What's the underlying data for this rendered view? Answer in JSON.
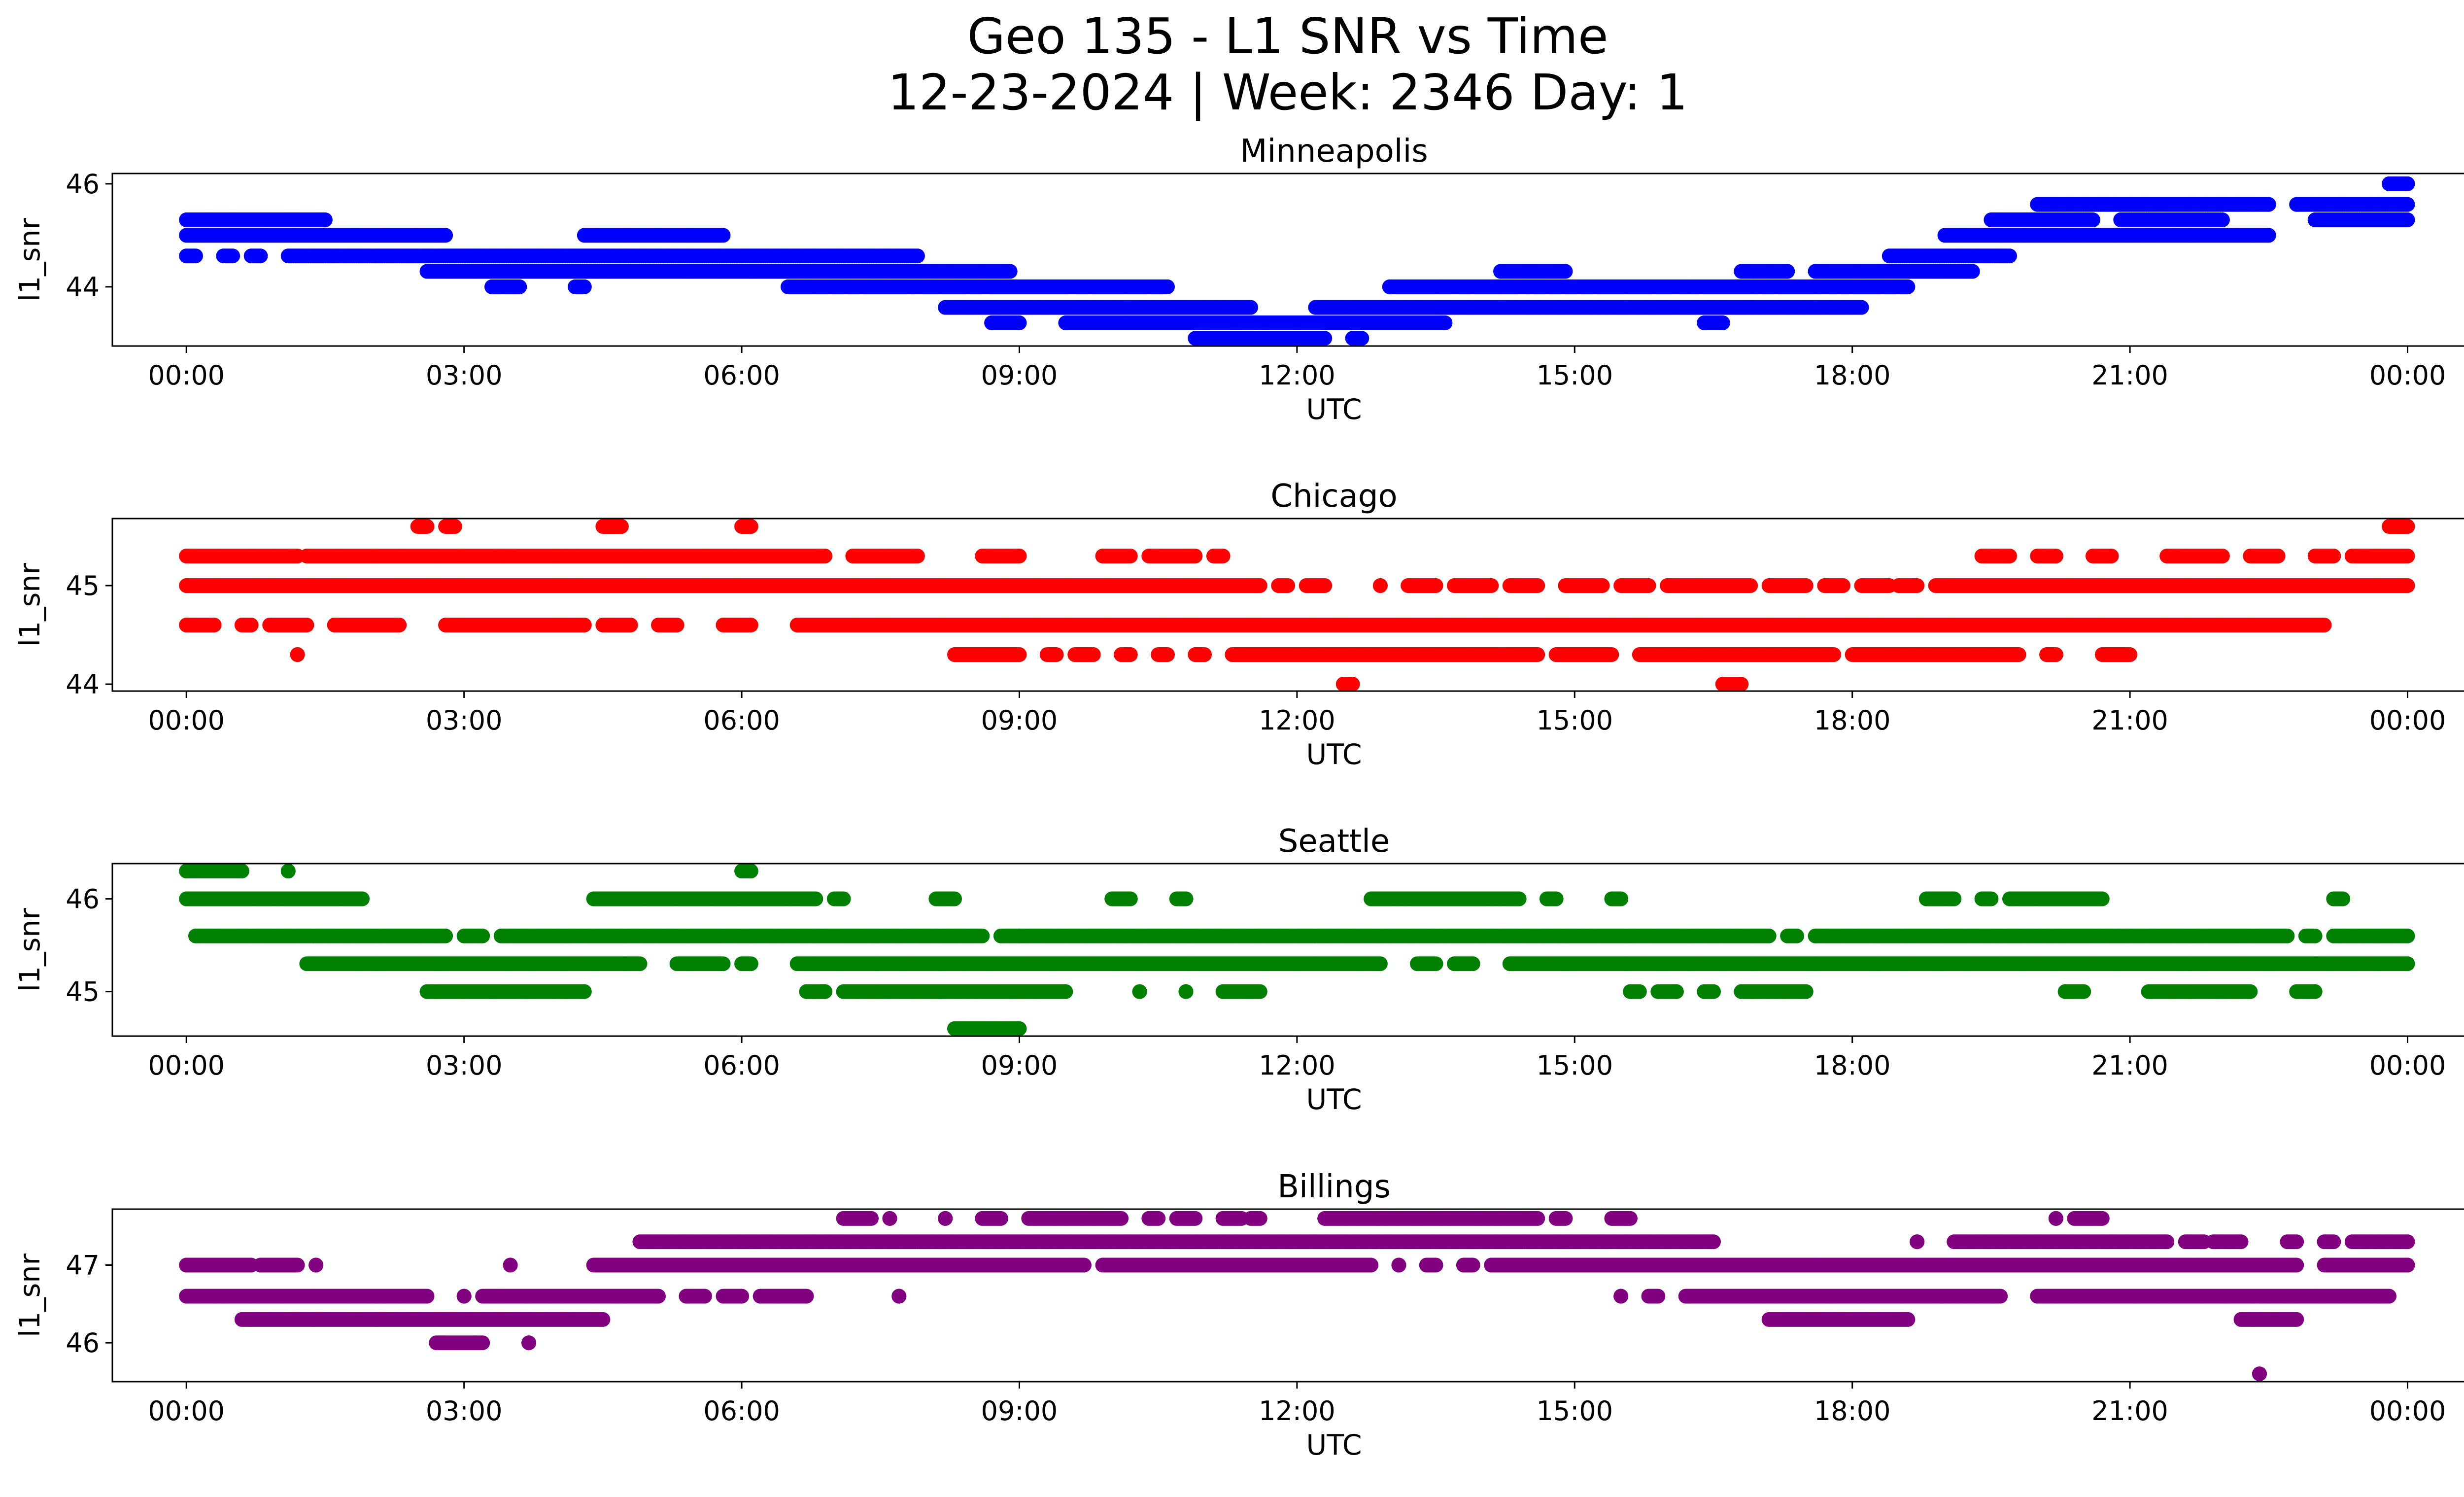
{
  "chart_data": {
    "type": "scatter",
    "title_line1": "Geo 135 - L1 SNR vs Time",
    "title_line2": "12-23-2024 | Week: 2346 Day: 1",
    "xlabel": "UTC",
    "ylabel": "l1_snr",
    "x_range_hours": [
      -0.8,
      25.6
    ],
    "x_ticks": [
      {
        "hour": 0,
        "label": "00:00"
      },
      {
        "hour": 3,
        "label": "03:00"
      },
      {
        "hour": 6,
        "label": "06:00"
      },
      {
        "hour": 9,
        "label": "09:00"
      },
      {
        "hour": 12,
        "label": "12:00"
      },
      {
        "hour": 15,
        "label": "15:00"
      },
      {
        "hour": 18,
        "label": "18:00"
      },
      {
        "hour": 21,
        "label": "21:00"
      },
      {
        "hour": 24,
        "label": "00:00"
      }
    ],
    "panels": [
      {
        "title": "Minneapolis",
        "color": "#0000ff",
        "ylim": [
          42.85,
          46.2
        ],
        "yticks": [
          {
            "value": 44,
            "label": "44"
          },
          {
            "value": 46,
            "label": "46"
          }
        ],
        "series": [
          {
            "snr": 46.0,
            "segments": [
              [
                23.8,
                24.0
              ]
            ]
          },
          {
            "snr": 45.6,
            "segments": [
              [
                20.0,
                22.5
              ],
              [
                22.8,
                24.0
              ]
            ]
          },
          {
            "snr": 45.3,
            "segments": [
              [
                0.0,
                1.5
              ],
              [
                19.5,
                20.6
              ],
              [
                20.9,
                22.0
              ],
              [
                23.0,
                24.0
              ]
            ]
          },
          {
            "snr": 45.0,
            "segments": [
              [
                0.0,
                2.8
              ],
              [
                4.3,
                5.8
              ],
              [
                19.0,
                22.5
              ]
            ]
          },
          {
            "snr": 44.6,
            "segments": [
              [
                0.0,
                0.1
              ],
              [
                0.4,
                0.5
              ],
              [
                0.7,
                0.8
              ],
              [
                1.1,
                7.9
              ],
              [
                18.4,
                19.7
              ]
            ]
          },
          {
            "snr": 44.3,
            "segments": [
              [
                2.6,
                8.9
              ],
              [
                14.2,
                14.9
              ],
              [
                16.8,
                17.3
              ],
              [
                17.6,
                19.3
              ]
            ]
          },
          {
            "snr": 44.0,
            "segments": [
              [
                3.3,
                3.6
              ],
              [
                4.2,
                4.3
              ],
              [
                6.5,
                10.6
              ],
              [
                13.0,
                18.6
              ]
            ]
          },
          {
            "snr": 43.6,
            "segments": [
              [
                8.2,
                11.5
              ],
              [
                12.2,
                18.1
              ]
            ]
          },
          {
            "snr": 43.3,
            "segments": [
              [
                8.7,
                9.0
              ],
              [
                9.5,
                13.6
              ],
              [
                16.4,
                16.6
              ]
            ]
          },
          {
            "snr": 43.0,
            "segments": [
              [
                10.9,
                12.3
              ],
              [
                12.6,
                12.7
              ]
            ]
          }
        ]
      },
      {
        "title": "Chicago",
        "color": "#ff0000",
        "ylim": [
          43.93,
          45.68
        ],
        "yticks": [
          {
            "value": 44,
            "label": "44"
          },
          {
            "value": 45,
            "label": "45"
          }
        ],
        "series": [
          {
            "snr": 45.6,
            "segments": [
              [
                2.5,
                2.6
              ],
              [
                2.8,
                2.9
              ],
              [
                4.5,
                4.7
              ],
              [
                6.0,
                6.1
              ],
              [
                23.8,
                24.0
              ]
            ]
          },
          {
            "snr": 45.3,
            "segments": [
              [
                0.0,
                1.2
              ],
              [
                1.3,
                6.9
              ],
              [
                7.2,
                7.9
              ],
              [
                8.6,
                9.0
              ],
              [
                9.9,
                10.2
              ],
              [
                10.4,
                10.9
              ],
              [
                11.1,
                11.2
              ],
              [
                19.4,
                19.7
              ],
              [
                20.0,
                20.2
              ],
              [
                20.6,
                20.8
              ],
              [
                21.4,
                22.0
              ],
              [
                22.3,
                22.6
              ],
              [
                23.0,
                23.2
              ],
              [
                23.4,
                24.0
              ]
            ]
          },
          {
            "snr": 45.0,
            "segments": [
              [
                0.0,
                11.6
              ],
              [
                11.8,
                11.9
              ],
              [
                12.1,
                12.3
              ],
              [
                12.9,
                12.9
              ],
              [
                13.2,
                13.5
              ],
              [
                13.7,
                14.1
              ],
              [
                14.3,
                14.6
              ],
              [
                14.9,
                15.3
              ],
              [
                15.5,
                15.8
              ],
              [
                16.0,
                16.9
              ],
              [
                17.1,
                17.5
              ],
              [
                17.7,
                17.9
              ],
              [
                18.1,
                18.4
              ],
              [
                18.5,
                18.7
              ],
              [
                18.9,
                24.0
              ]
            ]
          },
          {
            "snr": 44.6,
            "segments": [
              [
                0.0,
                0.3
              ],
              [
                0.6,
                0.7
              ],
              [
                0.9,
                1.3
              ],
              [
                1.6,
                2.3
              ],
              [
                2.8,
                4.3
              ],
              [
                4.5,
                4.8
              ],
              [
                5.1,
                5.3
              ],
              [
                5.8,
                6.1
              ],
              [
                6.6,
                23.1
              ]
            ]
          },
          {
            "snr": 44.3,
            "segments": [
              [
                1.2,
                1.2
              ],
              [
                8.3,
                9.0
              ],
              [
                9.3,
                9.4
              ],
              [
                9.6,
                9.8
              ],
              [
                10.1,
                10.2
              ],
              [
                10.5,
                10.6
              ],
              [
                10.9,
                11.0
              ],
              [
                11.3,
                14.6
              ],
              [
                14.8,
                15.4
              ],
              [
                15.7,
                17.8
              ],
              [
                18.0,
                19.8
              ],
              [
                20.1,
                20.2
              ],
              [
                20.7,
                21.0
              ]
            ]
          },
          {
            "snr": 44.0,
            "segments": [
              [
                12.5,
                12.6
              ],
              [
                16.6,
                16.8
              ]
            ]
          }
        ]
      },
      {
        "title": "Seattle",
        "color": "#008000",
        "ylim": [
          44.52,
          46.38
        ],
        "yticks": [
          {
            "value": 45,
            "label": "45"
          },
          {
            "value": 46,
            "label": "46"
          }
        ],
        "series": [
          {
            "snr": 46.3,
            "segments": [
              [
                0.0,
                0.6
              ],
              [
                1.1,
                1.1
              ],
              [
                6.0,
                6.1
              ]
            ]
          },
          {
            "snr": 46.0,
            "segments": [
              [
                0.0,
                1.9
              ],
              [
                4.4,
                6.8
              ],
              [
                7.0,
                7.1
              ],
              [
                8.1,
                8.3
              ],
              [
                10.0,
                10.2
              ],
              [
                10.7,
                10.8
              ],
              [
                12.8,
                14.4
              ],
              [
                14.7,
                14.8
              ],
              [
                15.4,
                15.5
              ],
              [
                18.8,
                19.1
              ],
              [
                19.4,
                19.5
              ],
              [
                19.7,
                20.7
              ],
              [
                23.2,
                23.3
              ]
            ]
          },
          {
            "snr": 45.6,
            "segments": [
              [
                0.1,
                2.8
              ],
              [
                3.0,
                3.2
              ],
              [
                3.4,
                8.6
              ],
              [
                8.8,
                9.0
              ],
              [
                9.0,
                17.1
              ],
              [
                17.3,
                17.4
              ],
              [
                17.6,
                22.7
              ],
              [
                22.9,
                23.0
              ],
              [
                23.2,
                24.0
              ]
            ]
          },
          {
            "snr": 45.3,
            "segments": [
              [
                1.3,
                4.9
              ],
              [
                5.3,
                5.8
              ],
              [
                6.0,
                6.1
              ],
              [
                6.6,
                12.9
              ],
              [
                13.3,
                13.5
              ],
              [
                13.7,
                13.9
              ],
              [
                14.3,
                24.0
              ]
            ]
          },
          {
            "snr": 45.0,
            "segments": [
              [
                2.6,
                4.3
              ],
              [
                6.7,
                6.9
              ],
              [
                7.1,
                9.5
              ],
              [
                10.3,
                10.3
              ],
              [
                10.8,
                10.8
              ],
              [
                11.2,
                11.6
              ],
              [
                15.6,
                15.7
              ],
              [
                15.9,
                16.1
              ],
              [
                16.4,
                16.5
              ],
              [
                16.8,
                17.5
              ],
              [
                20.3,
                20.5
              ],
              [
                21.2,
                22.3
              ],
              [
                22.8,
                23.0
              ]
            ]
          },
          {
            "snr": 44.6,
            "segments": [
              [
                8.3,
                9.0
              ]
            ]
          }
        ]
      },
      {
        "title": "Billings",
        "color": "#800080",
        "ylim": [
          45.5,
          47.72
        ],
        "yticks": [
          {
            "value": 46,
            "label": "46"
          },
          {
            "value": 47,
            "label": "47"
          }
        ],
        "series": [
          {
            "snr": 47.6,
            "segments": [
              [
                7.1,
                7.4
              ],
              [
                7.6,
                7.6
              ],
              [
                8.2,
                8.2
              ],
              [
                8.6,
                8.8
              ],
              [
                9.1,
                10.1
              ],
              [
                10.4,
                10.5
              ],
              [
                10.7,
                10.9
              ],
              [
                11.2,
                11.4
              ],
              [
                11.5,
                11.6
              ],
              [
                12.3,
                14.6
              ],
              [
                14.8,
                14.9
              ],
              [
                15.4,
                15.6
              ],
              [
                20.2,
                20.2
              ],
              [
                20.4,
                20.7
              ]
            ]
          },
          {
            "snr": 47.3,
            "segments": [
              [
                4.9,
                16.5
              ],
              [
                18.7,
                18.7
              ],
              [
                19.1,
                21.4
              ],
              [
                21.6,
                21.8
              ],
              [
                21.9,
                22.2
              ],
              [
                22.7,
                22.8
              ],
              [
                23.1,
                23.2
              ],
              [
                23.4,
                24.0
              ]
            ]
          },
          {
            "snr": 47.0,
            "segments": [
              [
                0.0,
                0.7
              ],
              [
                0.8,
                1.2
              ],
              [
                1.4,
                1.4
              ],
              [
                3.5,
                3.5
              ],
              [
                4.4,
                9.7
              ],
              [
                9.9,
                12.8
              ],
              [
                13.1,
                13.1
              ],
              [
                13.4,
                13.5
              ],
              [
                13.8,
                13.9
              ],
              [
                14.1,
                22.8
              ],
              [
                23.1,
                24.0
              ]
            ]
          },
          {
            "snr": 46.6,
            "segments": [
              [
                0.0,
                2.6
              ],
              [
                3.0,
                3.0
              ],
              [
                3.2,
                5.1
              ],
              [
                5.4,
                5.6
              ],
              [
                5.8,
                6.0
              ],
              [
                6.2,
                6.7
              ],
              [
                7.7,
                7.7
              ],
              [
                15.5,
                15.5
              ],
              [
                15.8,
                15.9
              ],
              [
                16.2,
                19.6
              ],
              [
                20.0,
                23.8
              ]
            ]
          },
          {
            "snr": 46.3,
            "segments": [
              [
                0.6,
                4.5
              ],
              [
                17.1,
                18.6
              ],
              [
                22.2,
                22.8
              ]
            ]
          },
          {
            "snr": 46.0,
            "segments": [
              [
                2.7,
                3.2
              ],
              [
                3.7,
                3.7
              ]
            ]
          },
          {
            "snr": 45.6,
            "segments": [
              [
                22.4,
                22.4
              ]
            ]
          }
        ]
      }
    ]
  }
}
